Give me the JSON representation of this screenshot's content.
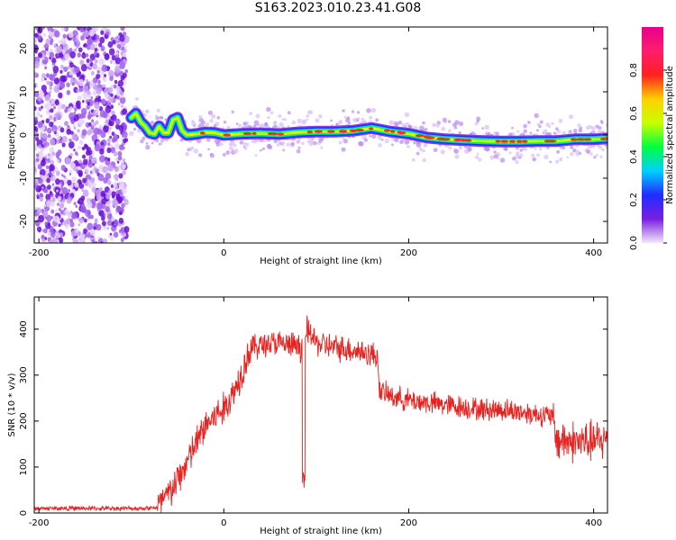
{
  "title": "S163.2023.010.23.41.G08",
  "chart_data": [
    {
      "type": "heatmap",
      "xlabel": "Height of straight line (km)",
      "ylabel": "Frequency (Hz)",
      "xlim": [
        -205,
        415
      ],
      "ylim": [
        -25,
        25
      ],
      "xticks": [
        -200,
        0,
        200,
        400
      ],
      "yticks": [
        -20,
        -10,
        0,
        10,
        20
      ],
      "colorbar": {
        "label": "Normalized spectral amplitude",
        "range": [
          0,
          1
        ],
        "ticks": [
          "0.0",
          "0.2",
          "0.4",
          "0.6",
          "0.8"
        ],
        "colors": [
          "#f4e8fb",
          "#7a1fe0",
          "#1f2cff",
          "#00d0ff",
          "#00ff40",
          "#c8ff00",
          "#ffd000",
          "#ff2020",
          "#ff1c6e",
          "#e8008c"
        ]
      },
      "noise_region": [
        -205,
        -105
      ],
      "ridge": {
        "x": [
          -100,
          -95,
          -90,
          -85,
          -80,
          -75,
          -70,
          -65,
          -60,
          -55,
          -50,
          -45,
          -40,
          -30,
          -20,
          -10,
          0,
          20,
          40,
          60,
          80,
          100,
          120,
          140,
          160,
          180,
          200,
          220,
          240,
          260,
          280,
          300,
          320,
          340,
          360,
          380,
          400,
          415
        ],
        "y": [
          4,
          5,
          3,
          2,
          0.5,
          0.2,
          2,
          0.5,
          0.5,
          3.5,
          4,
          1,
          0,
          0.2,
          0.6,
          0.5,
          0,
          0.3,
          0.4,
          0.2,
          0.6,
          0.8,
          0.8,
          1.0,
          1.6,
          0.8,
          0.3,
          -0.6,
          -1,
          -1.2,
          -1.4,
          -1.5,
          -1.5,
          -1.4,
          -1.4,
          -1,
          -1,
          -0.8
        ]
      }
    },
    {
      "type": "line",
      "xlabel": "Height of straight line (km)",
      "ylabel": "SNR (10 * v/v)",
      "xlim": [
        -205,
        415
      ],
      "ylim": [
        0,
        470
      ],
      "xticks": [
        -200,
        0,
        200,
        400
      ],
      "yticks": [
        0,
        100,
        200,
        300,
        400
      ],
      "color": "#e8221f",
      "series": [
        {
          "x": [
            -205,
            -180,
            -150,
            -120,
            -90,
            -72,
            -60,
            -50,
            -40,
            -30,
            -20,
            -10,
            0,
            10,
            20,
            25,
            30,
            40,
            50,
            60,
            70,
            80,
            85,
            86,
            87,
            90,
            100,
            110,
            120,
            130,
            140,
            150,
            160,
            167,
            168,
            180,
            200,
            220,
            240,
            260,
            280,
            300,
            320,
            340,
            355,
            360,
            380,
            400,
            415
          ],
          "y": [
            10,
            10,
            10,
            10,
            10,
            12,
            40,
            70,
            110,
            150,
            190,
            210,
            225,
            260,
            310,
            340,
            360,
            365,
            370,
            368,
            365,
            362,
            360,
            50,
            360,
            400,
            370,
            365,
            360,
            358,
            355,
            350,
            345,
            340,
            265,
            255,
            245,
            240,
            235,
            230,
            225,
            225,
            220,
            215,
            210,
            160,
            155,
            155,
            160
          ]
        }
      ]
    }
  ]
}
